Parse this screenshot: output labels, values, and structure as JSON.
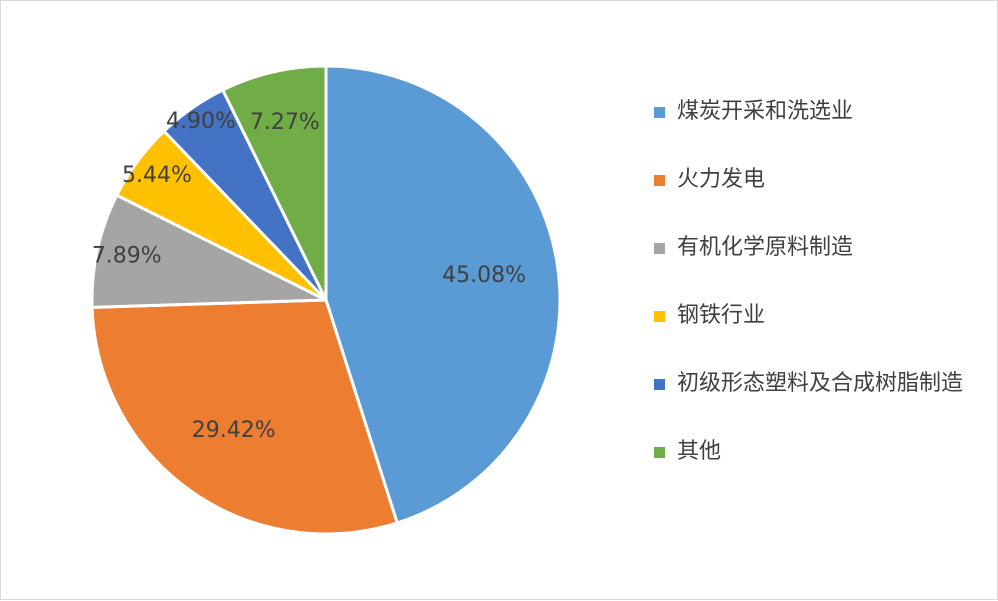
{
  "chart_data": {
    "type": "pie",
    "categories": [
      "煤炭开采和洗选业",
      "火力发电",
      "有机化学原料制造",
      "钢铁行业",
      "初级形态塑料及合成树脂制造",
      "其他"
    ],
    "values": [
      45.08,
      29.42,
      7.89,
      5.44,
      4.9,
      7.27
    ],
    "data_labels": [
      "45.08%",
      "29.42%",
      "7.89%",
      "5.44%",
      "4.90%",
      "7.27%"
    ],
    "colors": [
      "#5B9BD5",
      "#ED7D31",
      "#A5A5A5",
      "#FFC000",
      "#4472C4",
      "#70AD47"
    ],
    "legend_position": "right",
    "start": "12 o'clock",
    "direction": "clockwise"
  }
}
